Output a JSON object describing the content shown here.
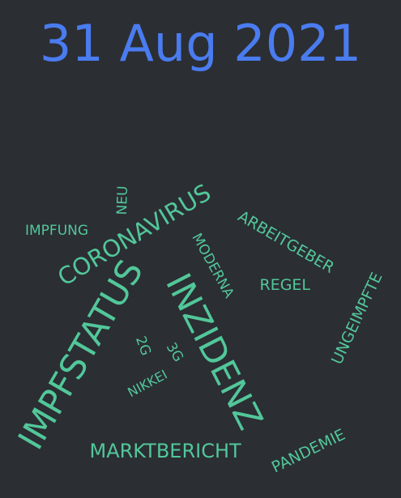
{
  "title": "31 Aug 2021",
  "word_color": "#52c79a",
  "title_color": "#4a7cf0",
  "words": [
    {
      "text": "INZIDENZ"
    },
    {
      "text": "IMPFSTATUS"
    },
    {
      "text": "CORONAVIRUS"
    },
    {
      "text": "MARKTBERICHT"
    },
    {
      "text": "ARBEITGEBER"
    },
    {
      "text": "UNGEIMPFTE"
    },
    {
      "text": "PANDEMIE"
    },
    {
      "text": "MODERNA"
    },
    {
      "text": "REGEL"
    },
    {
      "text": "IMPFUNG"
    },
    {
      "text": "NEU"
    },
    {
      "text": "3G"
    },
    {
      "text": "2G"
    },
    {
      "text": "NIKKEI"
    }
  ]
}
